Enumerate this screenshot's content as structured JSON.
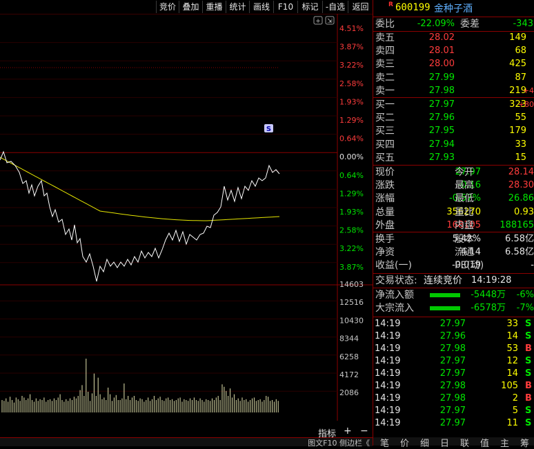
{
  "toolbar": {
    "buttons": [
      "竞价",
      "叠加",
      "重播",
      "统计",
      "画线",
      "F10",
      "标记",
      "-自选",
      "返回"
    ]
  },
  "chart": {
    "right_axis_labels_red": [
      "4.51%",
      "3.87%",
      "3.22%",
      "2.58%",
      "1.93%",
      "1.29%",
      "0.64%"
    ],
    "zero_label": "0.00%",
    "right_axis_labels_green": [
      "0.64%",
      "1.29%",
      "1.93%",
      "2.58%",
      "3.22%",
      "3.87%"
    ],
    "volume_labels": [
      "14603",
      "12516",
      "10430",
      "8344",
      "6258",
      "4172",
      "2086"
    ],
    "s_marker": "S",
    "colors": {
      "price_line": "#ffffff",
      "avg_line": "#e6e600",
      "volume": "#e6e6b0",
      "up": "#ff3c3c",
      "down": "#00e600"
    }
  },
  "bottombar": {
    "indicator": "指标",
    "plus": "+",
    "minus": "−"
  },
  "status_strip": "图文F10  侧边栏《",
  "stock": {
    "badge": "R",
    "code": "600199",
    "name": "金种子酒"
  },
  "commission": {
    "ratio_label": "委比",
    "ratio": "-22.09%",
    "diff_label": "委差",
    "diff": "-343"
  },
  "asks": [
    {
      "label": "卖五",
      "price": "28.02",
      "vol": "149",
      "chg": ""
    },
    {
      "label": "卖四",
      "price": "28.01",
      "vol": "68",
      "chg": ""
    },
    {
      "label": "卖三",
      "price": "28.00",
      "vol": "425",
      "chg": ""
    },
    {
      "label": "卖二",
      "price": "27.99",
      "vol": "87",
      "chg": ""
    },
    {
      "label": "卖一",
      "price": "27.98",
      "vol": "219",
      "chg": "+4"
    }
  ],
  "bids": [
    {
      "label": "买一",
      "price": "27.97",
      "vol": "323",
      "chg": "+80"
    },
    {
      "label": "买二",
      "price": "27.96",
      "vol": "55",
      "chg": ""
    },
    {
      "label": "买三",
      "price": "27.95",
      "vol": "179",
      "chg": ""
    },
    {
      "label": "买四",
      "price": "27.94",
      "vol": "33",
      "chg": ""
    },
    {
      "label": "买五",
      "price": "27.93",
      "vol": "15",
      "chg": ""
    }
  ],
  "quote": [
    {
      "l1": "现价",
      "v1": "27.97",
      "c1": "green",
      "l2": "今开",
      "v2": "28.14",
      "c2": "red"
    },
    {
      "l1": "涨跌",
      "v1": "-0.16",
      "c1": "green",
      "l2": "最高",
      "v2": "28.30",
      "c2": "red"
    },
    {
      "l1": "涨幅",
      "v1": "-0.57%",
      "c1": "green",
      "l2": "最低",
      "v2": "26.86",
      "c2": "green"
    },
    {
      "l1": "总量",
      "v1": "356270",
      "c1": "yellow",
      "l2": "量比",
      "v2": "0.93",
      "c2": "yellow"
    },
    {
      "l1": "外盘",
      "v1": "168105",
      "c1": "red",
      "l2": "内盘",
      "v2": "188165",
      "c2": "green"
    }
  ],
  "fundamentals": [
    {
      "l1": "换手",
      "v1": "5.42%",
      "l2": "股本",
      "v2": "6.58亿"
    },
    {
      "l1": "净资",
      "v1": "4.14",
      "l2": "流通",
      "v2": "6.58亿"
    },
    {
      "l1": "收益(一)",
      "v1": "-0.019",
      "l2": "PE(动)",
      "v2": "-"
    }
  ],
  "trade_status": {
    "label": "交易状态:",
    "value": "连续竞价",
    "time": "14:19:28"
  },
  "flows": [
    {
      "label": "净流入额",
      "value": "-5448万",
      "pct": "-6%"
    },
    {
      "label": "大宗流入",
      "value": "-6578万",
      "pct": "-7%"
    }
  ],
  "ticks": [
    {
      "time": "14:19",
      "price": "27.97",
      "vol": "33",
      "side": "S"
    },
    {
      "time": "14:19",
      "price": "27.96",
      "vol": "14",
      "side": "S"
    },
    {
      "time": "14:19",
      "price": "27.98",
      "vol": "53",
      "side": "B"
    },
    {
      "time": "14:19",
      "price": "27.97",
      "vol": "12",
      "side": "S"
    },
    {
      "time": "14:19",
      "price": "27.97",
      "vol": "14",
      "side": "S"
    },
    {
      "time": "14:19",
      "price": "27.98",
      "vol": "105",
      "side": "B"
    },
    {
      "time": "14:19",
      "price": "27.98",
      "vol": "2",
      "side": "B"
    },
    {
      "time": "14:19",
      "price": "27.97",
      "vol": "5",
      "side": "S"
    },
    {
      "time": "14:19",
      "price": "27.97",
      "vol": "11",
      "side": "S"
    }
  ],
  "bottom_tabs": [
    "笔",
    "价",
    "细",
    "日",
    "联",
    "值",
    "主",
    "筹"
  ]
}
